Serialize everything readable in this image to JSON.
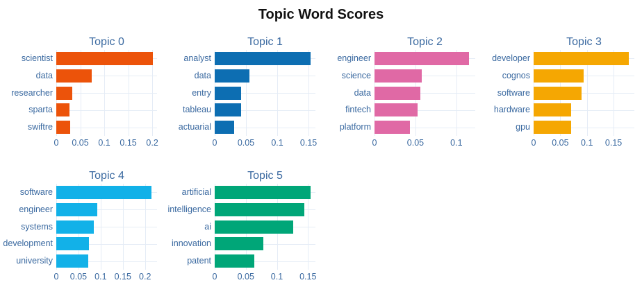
{
  "page": {
    "title": "Topic Word Scores"
  },
  "style": {
    "background": "#ffffff",
    "title_color": "#111111",
    "text_color": "#3A69A0",
    "grid_color": "#E5ECF6"
  },
  "chart_data": [
    {
      "type": "bar",
      "orientation": "horizontal",
      "title": "Topic 0",
      "color": "#EC530A",
      "categories": [
        "scientist",
        "data",
        "researcher",
        "sparta",
        "swiftre"
      ],
      "values": [
        0.201,
        0.074,
        0.034,
        0.028,
        0.029
      ],
      "xlim": [
        0,
        0.21
      ],
      "xticks": [
        0,
        0.05,
        0.1,
        0.15,
        0.2
      ],
      "xtick_labels": [
        "0",
        "0.05",
        "0.1",
        "0.15",
        "0.2"
      ],
      "grid": {
        "row": 0,
        "col": 0
      }
    },
    {
      "type": "bar",
      "orientation": "horizontal",
      "title": "Topic 1",
      "color": "#0D6EB2",
      "categories": [
        "analyst",
        "data",
        "entry",
        "tableau",
        "actuarial"
      ],
      "values": [
        0.153,
        0.056,
        0.042,
        0.042,
        0.031
      ],
      "xlim": [
        0,
        0.161
      ],
      "xticks": [
        0,
        0.05,
        0.1,
        0.15
      ],
      "xtick_labels": [
        "0",
        "0.05",
        "0.1",
        "0.15"
      ],
      "grid": {
        "row": 0,
        "col": 1
      }
    },
    {
      "type": "bar",
      "orientation": "horizontal",
      "title": "Topic 2",
      "color": "#E069A5",
      "categories": [
        "engineer",
        "science",
        "data",
        "fintech",
        "platform"
      ],
      "values": [
        0.115,
        0.058,
        0.056,
        0.053,
        0.043
      ],
      "xlim": [
        0,
        0.123
      ],
      "xticks": [
        0,
        0.05,
        0.1
      ],
      "xtick_labels": [
        "0",
        "0.05",
        "0.1"
      ],
      "grid": {
        "row": 0,
        "col": 2
      }
    },
    {
      "type": "bar",
      "orientation": "horizontal",
      "title": "Topic 3",
      "color": "#F5A702",
      "categories": [
        "developer",
        "cognos",
        "software",
        "hardware",
        "gpu"
      ],
      "values": [
        0.179,
        0.094,
        0.09,
        0.07,
        0.07
      ],
      "xlim": [
        0,
        0.189
      ],
      "xticks": [
        0,
        0.05,
        0.1,
        0.15
      ],
      "xtick_labels": [
        "0",
        "0.05",
        "0.1",
        "0.15"
      ],
      "grid": {
        "row": 1,
        "col": 0
      }
    },
    {
      "type": "bar",
      "orientation": "horizontal",
      "title": "Topic 4",
      "color": "#12B1E8",
      "categories": [
        "software",
        "engineer",
        "systems",
        "development",
        "university"
      ],
      "values": [
        0.214,
        0.093,
        0.084,
        0.073,
        0.072
      ],
      "xlim": [
        0,
        0.227
      ],
      "xticks": [
        0,
        0.05,
        0.1,
        0.15,
        0.2
      ],
      "xtick_labels": [
        "0",
        "0.05",
        "0.1",
        "0.15",
        "0.2"
      ],
      "grid": {
        "row": 2,
        "col": 0
      }
    },
    {
      "type": "bar",
      "orientation": "horizontal",
      "title": "Topic 5",
      "color": "#00A678",
      "categories": [
        "artificial",
        "intelligence",
        "ai",
        "innovation",
        "patent"
      ],
      "values": [
        0.154,
        0.144,
        0.126,
        0.078,
        0.064
      ],
      "xlim": [
        0,
        0.162
      ],
      "xticks": [
        0,
        0.05,
        0.1,
        0.15
      ],
      "xtick_labels": [
        "0",
        "0.05",
        "0.1",
        "0.15"
      ],
      "grid": {
        "row": 2,
        "col": 1
      }
    }
  ]
}
